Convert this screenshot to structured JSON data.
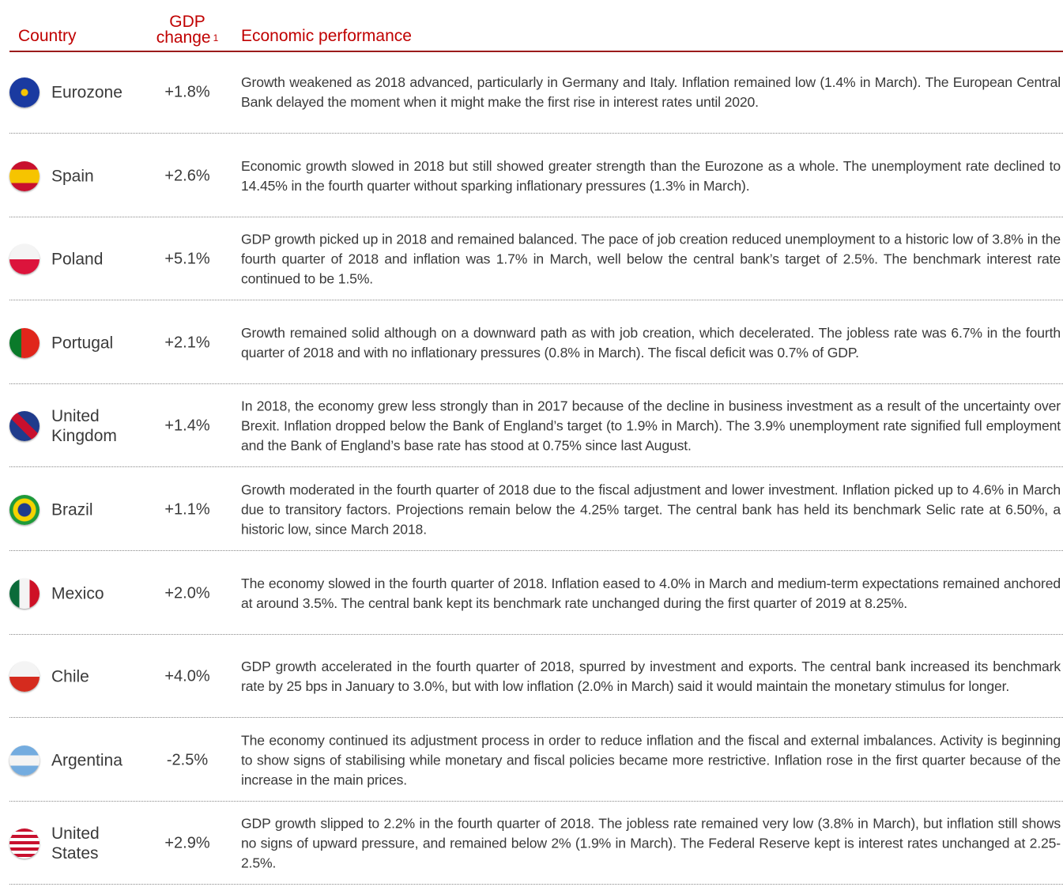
{
  "header": {
    "country": "Country",
    "gdp": [
      "GDP",
      "change"
    ],
    "gdp_note": "1",
    "performance": "Economic performance"
  },
  "table": {
    "rows": [
      [
        "Eurozone",
        "+1.8%",
        "Growth weakened as 2018 advanced, particularly in Germany and Italy. Inflation remained low (1.4% in March). The European Central Bank delayed the moment when it might make the first rise in interest rates until 2020."
      ],
      [
        "Spain",
        "+2.6%",
        "Economic growth slowed in 2018 but still showed greater strength than the Eurozone as a whole. The unemployment rate declined to 14.45% in the fourth quarter without sparking inflationary pressures (1.3% in March)."
      ],
      [
        "Poland",
        "+5.1%",
        "GDP growth picked up in 2018 and remained balanced. The pace of job creation reduced unemployment to a historic low of 3.8% in the fourth quarter of 2018 and inflation was 1.7% in March, well below the central bank’s target of 2.5%. The benchmark interest rate  continued to be 1.5%."
      ],
      [
        "Portugal",
        "+2.1%",
        "Growth remained solid although on a downward path as with job creation, which decelerated. The jobless rate was 6.7% in the fourth quarter of 2018 and with no inflationary pressures (0.8% in March). The fiscal deficit was 0.7% of GDP."
      ],
      [
        "United Kingdom",
        "+1.4%",
        "In 2018, the economy grew less strongly than in 2017 because of the decline in business investment as a result of the uncertainty over Brexit. Inflation dropped below the Bank of England’s target (to 1.9% in March). The 3.9% unemployment rate signified full employment and the Bank of England’s base rate has stood at 0.75% since last August."
      ],
      [
        "Brazil",
        "+1.1%",
        "Growth moderated in the fourth quarter of 2018 due to the fiscal adjustment and lower investment. Inflation picked up to 4.6% in March due to transitory factors. Projections remain below the 4.25% target. The central bank has held its benchmark Selic rate at 6.50%, a historic low, since March 2018."
      ],
      [
        "Mexico",
        "+2.0%",
        "The economy slowed in the fourth quarter of 2018. Inflation eased to 4.0% in March and medium-term expectations remained anchored at around 3.5%. The central bank kept its benchmark rate unchanged during the first quarter of 2019 at 8.25%."
      ],
      [
        "Chile",
        "+4.0%",
        "GDP growth accelerated in the fourth quarter of 2018, spurred by investment and exports. The central bank increased its benchmark rate by 25 bps in January to 3.0%, but with low inflation (2.0% in March) said it would maintain the monetary stimulus for longer."
      ],
      [
        "Argentina",
        "-2.5%",
        "The economy continued its adjustment process in order to reduce inflation and the fiscal and external imbalances. Activity is beginning to show signs of stabilising while monetary and fiscal policies became more restrictive. Inflation rose in the first quarter because of the increase in the main prices."
      ],
      [
        "United States",
        "+2.9%",
        "GDP growth slipped to 2.2% in the fourth quarter of 2018. The jobless rate remained very low (3.8% in March), but inflation still shows no signs of upward pressure, and remained below 2% (1.9% in March). The Federal Reserve kept is interest rates unchanged at 2.25-2.5%."
      ]
    ]
  }
}
